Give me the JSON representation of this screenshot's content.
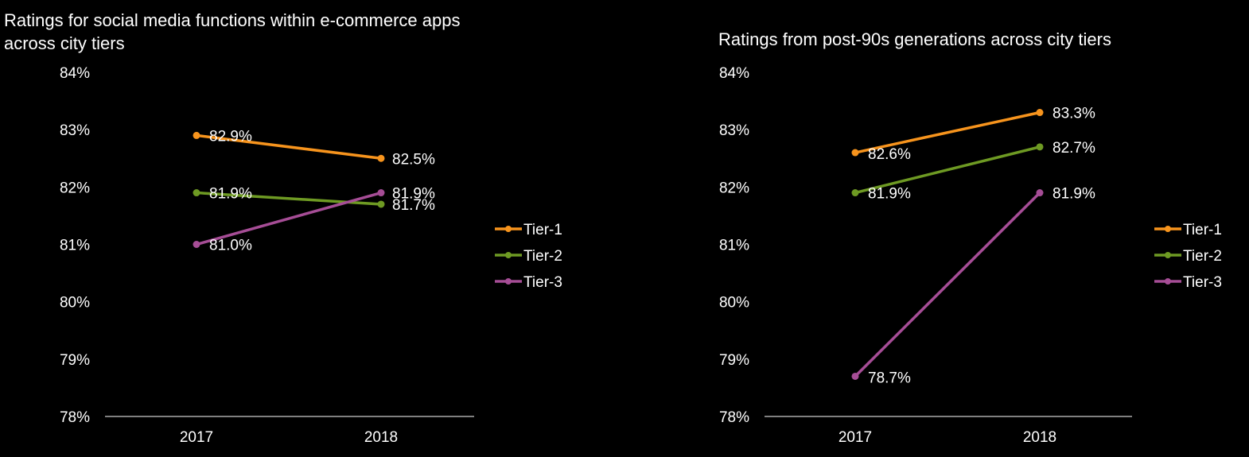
{
  "chart_data": [
    {
      "type": "line",
      "title_lines": [
        "Ratings for social media functions within e-commerce apps",
        "across city tiers"
      ],
      "categories": [
        "2017",
        "2018"
      ],
      "y_ticks": [
        "84%",
        "83%",
        "82%",
        "81%",
        "80%",
        "79%",
        "78%"
      ],
      "ylim": [
        78,
        84
      ],
      "legend_position": "right",
      "series": [
        {
          "name": "Tier-1",
          "color": "#F7941D",
          "values": [
            82.9,
            82.5
          ],
          "labels": [
            "82.9%",
            "82.5%"
          ]
        },
        {
          "name": "Tier-2",
          "color": "#6E9A23",
          "values": [
            81.9,
            81.7
          ],
          "labels": [
            "81.9%",
            "81.7%"
          ]
        },
        {
          "name": "Tier-3",
          "color": "#A64D96",
          "values": [
            81.0,
            81.9
          ],
          "labels": [
            "81.0%",
            "81.9%"
          ]
        }
      ]
    },
    {
      "type": "line",
      "title_lines": [
        "Ratings from post-90s generations across city tiers"
      ],
      "categories": [
        "2017",
        "2018"
      ],
      "y_ticks": [
        "84%",
        "83%",
        "82%",
        "81%",
        "80%",
        "79%",
        "78%"
      ],
      "ylim": [
        78,
        84
      ],
      "legend_position": "right",
      "series": [
        {
          "name": "Tier-1",
          "color": "#F7941D",
          "values": [
            82.6,
            83.3
          ],
          "labels": [
            "82.6%",
            "83.3%"
          ]
        },
        {
          "name": "Tier-2",
          "color": "#6E9A23",
          "values": [
            81.9,
            82.7
          ],
          "labels": [
            "81.9%",
            "82.7%"
          ]
        },
        {
          "name": "Tier-3",
          "color": "#A64D96",
          "values": [
            78.7,
            81.9
          ],
          "labels": [
            "78.7%",
            "81.9%"
          ]
        }
      ]
    }
  ]
}
